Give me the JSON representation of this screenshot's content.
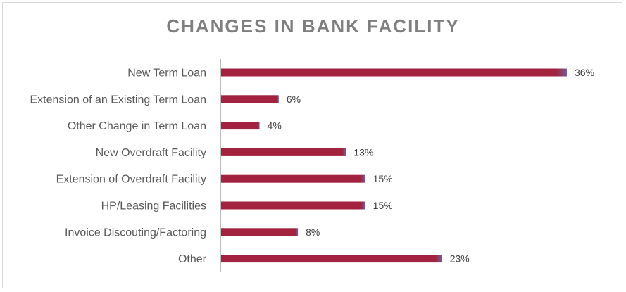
{
  "colors": {
    "bar": "#a3223f",
    "bar_edge": "#6f5f9a",
    "axis": "#a6a6a6",
    "title": "#7f7f7f"
  },
  "chart_data": {
    "type": "bar",
    "orientation": "horizontal",
    "title": "CHANGES IN BANK FACILITY",
    "categories": [
      "New Term Loan",
      "Extension of an Existing Term Loan",
      "Other Change in Term Loan",
      "New Overdraft Facility",
      "Extension of Overdraft Facility",
      "HP/Leasing Facilities",
      "Invoice Discouting/Factoring",
      "Other"
    ],
    "values": [
      36,
      6,
      4,
      13,
      15,
      15,
      8,
      23
    ],
    "value_labels": [
      "36%",
      "6%",
      "4%",
      "13%",
      "15%",
      "15%",
      "8%",
      "23%"
    ],
    "unit": "%",
    "xlim": [
      0,
      40
    ],
    "grid": false,
    "legend": "none"
  }
}
